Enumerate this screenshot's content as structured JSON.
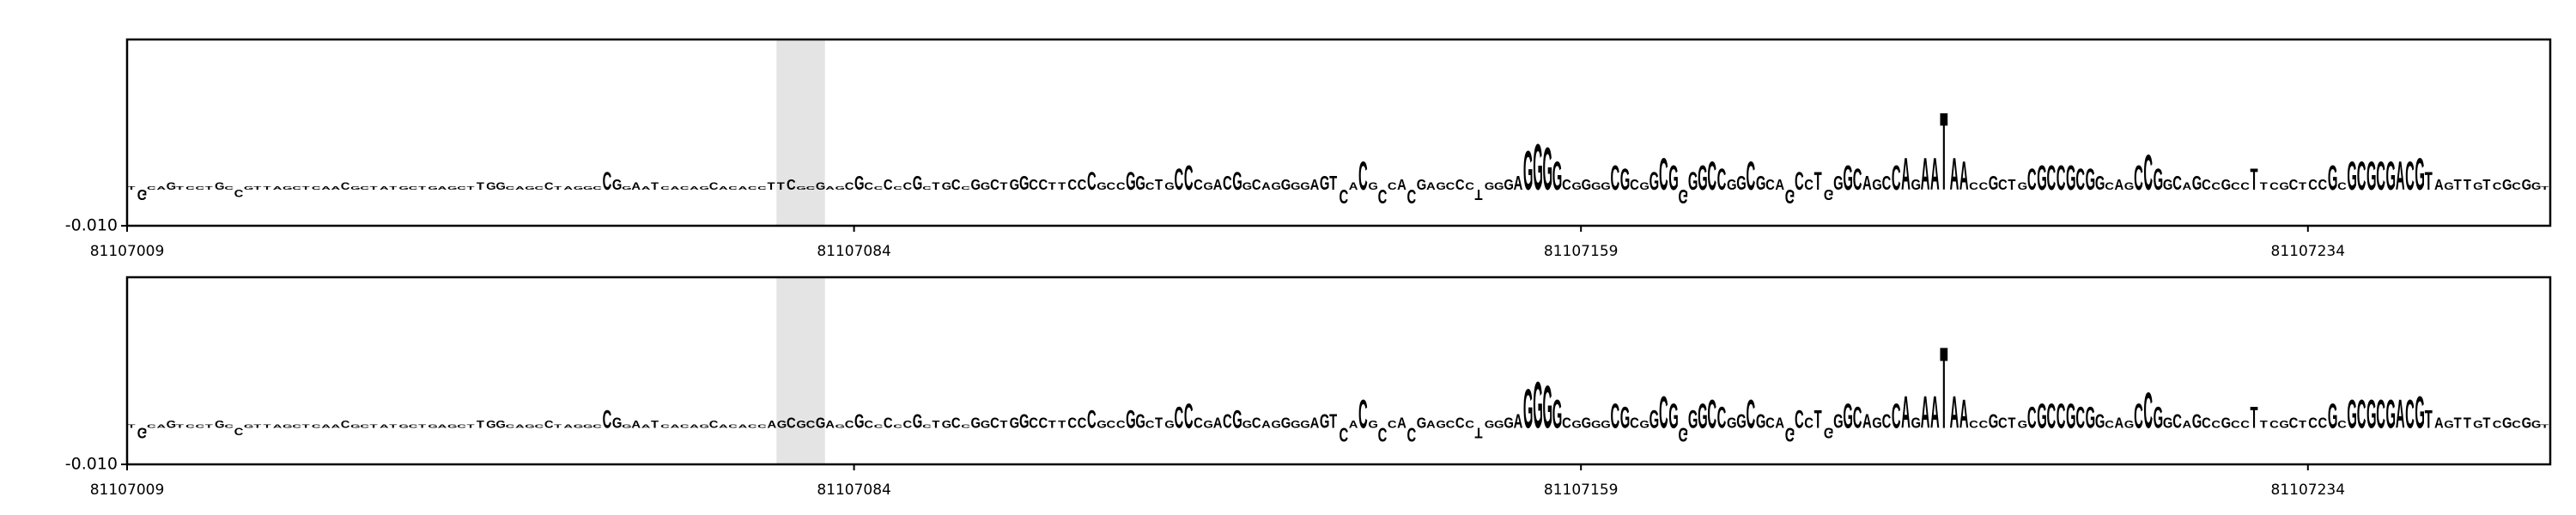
{
  "chart_data": [
    {
      "type": "logo",
      "colors": {
        "A": "#008000",
        "C": "#0000ff",
        "G": "#ffa500",
        "T": "#ff0000"
      },
      "x_start": 81107009,
      "xlim": [
        81107009,
        81107259
      ],
      "xticks": [
        81107009,
        81107084,
        81107159,
        81107234
      ],
      "ylim": [
        -0.01,
        0.0414
      ],
      "yticks": [
        {
          "value": -0.01,
          "label": "-0.010"
        }
      ],
      "highlight": [
        81107076,
        81107081
      ],
      "sequence": "TGCAGTCCTGCCGTTAGCTCAACGCTATGCTGAGCTTGGCAGCCTAGGCCGGAATCACAGCACACCTTCGCGAGCGCCCCCGCTGCCGGCTGGCCTTCCCGCCGGCTGCCCGACGGCAGGGGAGTCACGCCACGAGCCCTGGGAGGGGCGGGGCGCGGCGGGGCCGGCGCAGCCTGGGCAGCCAGAATAACCGCTGCGCCGCGGCAGCCGGCAGCCGCCTTCGCTCCGCGCGCGACGTAGTTGTCGCGGT",
      "values": [
        0.001,
        -0.003,
        0.001,
        0.001,
        0.002,
        0.001,
        0.001,
        0.001,
        0.001,
        0.002,
        0.001,
        -0.002,
        0.001,
        0.001,
        0.001,
        0.001,
        0.001,
        0.001,
        0.001,
        0.001,
        0.001,
        0.001,
        0.002,
        0.001,
        0.001,
        0.001,
        0.001,
        0.001,
        0.001,
        0.001,
        0.001,
        0.001,
        0.001,
        0.001,
        0.001,
        0.001,
        0.002,
        0.002,
        0.002,
        0.001,
        0.001,
        0.001,
        0.001,
        0.002,
        0.001,
        0.001,
        0.001,
        0.001,
        0.001,
        0.005,
        0.003,
        0.001,
        0.002,
        0.001,
        0.002,
        0.001,
        0.001,
        0.001,
        0.001,
        0.001,
        0.002,
        0.001,
        0.001,
        0.001,
        0.001,
        0.001,
        0.002,
        0.002,
        0.003,
        0.001,
        0.001,
        0.002,
        0.001,
        0.001,
        0.002,
        0.004,
        0.002,
        0.001,
        0.003,
        0.001,
        0.002,
        0.004,
        0.001,
        0.002,
        0.002,
        0.003,
        0.001,
        0.003,
        0.002,
        0.003,
        0.002,
        0.003,
        0.004,
        0.003,
        0.003,
        0.002,
        0.002,
        0.003,
        0.003,
        0.005,
        0.002,
        0.002,
        0.002,
        0.005,
        0.004,
        0.002,
        0.003,
        0.002,
        0.006,
        0.007,
        0.003,
        0.002,
        0.003,
        0.004,
        0.005,
        0.002,
        0.003,
        0.002,
        0.002,
        0.003,
        0.002,
        0.002,
        0.003,
        0.004,
        0.004,
        -0.004,
        0.002,
        0.008,
        0.002,
        -0.004,
        0.002,
        0.003,
        -0.004,
        0.003,
        0.002,
        0.002,
        0.002,
        0.003,
        0.002,
        -0.003,
        0.002,
        0.002,
        0.003,
        0.004,
        0.011,
        0.013,
        0.012,
        0.008,
        0.003,
        0.002,
        0.003,
        0.002,
        0.002,
        0.007,
        0.006,
        0.003,
        0.002,
        0.005,
        0.009,
        0.007,
        -0.004,
        0.005,
        0.007,
        0.008,
        0.006,
        0.003,
        0.004,
        0.008,
        0.004,
        0.003,
        0.003,
        -0.004,
        0.005,
        0.003,
        0.005,
        -0.003,
        0.004,
        0.007,
        0.006,
        0.004,
        0.003,
        0.004,
        0.007,
        0.009,
        0.003,
        0.009,
        0.009,
        0.022,
        0.009,
        0.008,
        0.002,
        0.002,
        0.004,
        0.003,
        0.003,
        0.002,
        0.006,
        0.007,
        0.007,
        0.007,
        0.007,
        0.006,
        0.006,
        0.004,
        0.002,
        0.003,
        0.002,
        0.007,
        0.01,
        0.006,
        0.003,
        0.004,
        0.002,
        0.004,
        0.003,
        0.002,
        0.003,
        0.002,
        0.002,
        0.006,
        0.002,
        0.002,
        0.002,
        0.003,
        0.002,
        0.003,
        0.003,
        0.007,
        0.002,
        0.008,
        0.008,
        0.008,
        0.008,
        0.008,
        0.008,
        0.008,
        0.009,
        0.005,
        0.003,
        0.002,
        0.003,
        0.003,
        0.002,
        0.003,
        0.002,
        0.003,
        0.002,
        0.003,
        0.002,
        0.001
      ]
    },
    {
      "type": "logo",
      "colors": {
        "A": "#008000",
        "C": "#0000ff",
        "G": "#ffa500",
        "T": "#ff0000"
      },
      "x_start": 81107009,
      "xlim": [
        81107009,
        81107259
      ],
      "xticks": [
        81107009,
        81107084,
        81107159,
        81107234
      ],
      "ylim": [
        -0.01,
        0.0414
      ],
      "yticks": [
        {
          "value": -0.01,
          "label": "-0.010"
        }
      ],
      "highlight": [
        81107076,
        81107081
      ],
      "sequence": "TGCAGTCCTGCCGTTAGCTCAACGCTATGCTGAGCTTGGCAGCCTAGGCCGGAATCACAGCACACCAGCGCGAGCGCCCCCGCTGCCGGCTGGCCTTCCCGCCGGCTGCCCGACGGCAGGGGAGTCACGCCACGAGCCCTGGGAGGGGCGGGGCGCGGCGGGGCCGGCGCAGCCTGGGCAGCCAGAATAACCGCTGCGCCGCGGCAGCCGGCAGCCGCCTTCGCTCCGCGCGCGACGTAGTTGTCGCGGT",
      "values": [
        0.001,
        -0.003,
        0.001,
        0.001,
        0.002,
        0.001,
        0.001,
        0.001,
        0.001,
        0.002,
        0.001,
        -0.002,
        0.001,
        0.001,
        0.001,
        0.001,
        0.001,
        0.001,
        0.001,
        0.001,
        0.001,
        0.001,
        0.002,
        0.001,
        0.001,
        0.001,
        0.001,
        0.001,
        0.001,
        0.001,
        0.001,
        0.001,
        0.001,
        0.001,
        0.001,
        0.001,
        0.002,
        0.002,
        0.002,
        0.001,
        0.001,
        0.001,
        0.001,
        0.002,
        0.001,
        0.001,
        0.001,
        0.001,
        0.001,
        0.005,
        0.003,
        0.001,
        0.002,
        0.001,
        0.002,
        0.001,
        0.001,
        0.001,
        0.001,
        0.001,
        0.002,
        0.001,
        0.001,
        0.001,
        0.001,
        0.001,
        0.002,
        0.002,
        0.003,
        0.002,
        0.002,
        0.003,
        0.002,
        0.001,
        0.002,
        0.004,
        0.002,
        0.001,
        0.003,
        0.001,
        0.002,
        0.004,
        0.001,
        0.002,
        0.002,
        0.003,
        0.001,
        0.003,
        0.002,
        0.003,
        0.002,
        0.003,
        0.004,
        0.003,
        0.003,
        0.002,
        0.002,
        0.003,
        0.003,
        0.005,
        0.002,
        0.002,
        0.002,
        0.005,
        0.004,
        0.002,
        0.003,
        0.002,
        0.006,
        0.007,
        0.003,
        0.002,
        0.003,
        0.004,
        0.005,
        0.002,
        0.003,
        0.002,
        0.002,
        0.003,
        0.002,
        0.002,
        0.003,
        0.004,
        0.004,
        -0.004,
        0.002,
        0.008,
        0.002,
        -0.004,
        0.002,
        0.003,
        -0.004,
        0.003,
        0.002,
        0.002,
        0.002,
        0.003,
        0.002,
        -0.003,
        0.002,
        0.002,
        0.003,
        0.004,
        0.011,
        0.013,
        0.012,
        0.008,
        0.003,
        0.002,
        0.003,
        0.002,
        0.002,
        0.007,
        0.006,
        0.003,
        0.002,
        0.005,
        0.009,
        0.007,
        -0.004,
        0.005,
        0.007,
        0.008,
        0.006,
        0.003,
        0.004,
        0.008,
        0.004,
        0.003,
        0.003,
        -0.004,
        0.005,
        0.003,
        0.005,
        -0.003,
        0.004,
        0.007,
        0.006,
        0.004,
        0.003,
        0.004,
        0.007,
        0.009,
        0.003,
        0.009,
        0.009,
        0.023,
        0.009,
        0.008,
        0.002,
        0.002,
        0.004,
        0.003,
        0.003,
        0.002,
        0.006,
        0.007,
        0.007,
        0.007,
        0.007,
        0.006,
        0.006,
        0.004,
        0.002,
        0.003,
        0.002,
        0.007,
        0.01,
        0.006,
        0.003,
        0.004,
        0.002,
        0.004,
        0.003,
        0.002,
        0.003,
        0.002,
        0.002,
        0.006,
        0.002,
        0.002,
        0.002,
        0.003,
        0.002,
        0.003,
        0.003,
        0.007,
        0.002,
        0.008,
        0.008,
        0.008,
        0.008,
        0.008,
        0.008,
        0.008,
        0.009,
        0.005,
        0.003,
        0.002,
        0.003,
        0.003,
        0.002,
        0.003,
        0.002,
        0.003,
        0.002,
        0.003,
        0.002,
        0.001
      ]
    }
  ]
}
